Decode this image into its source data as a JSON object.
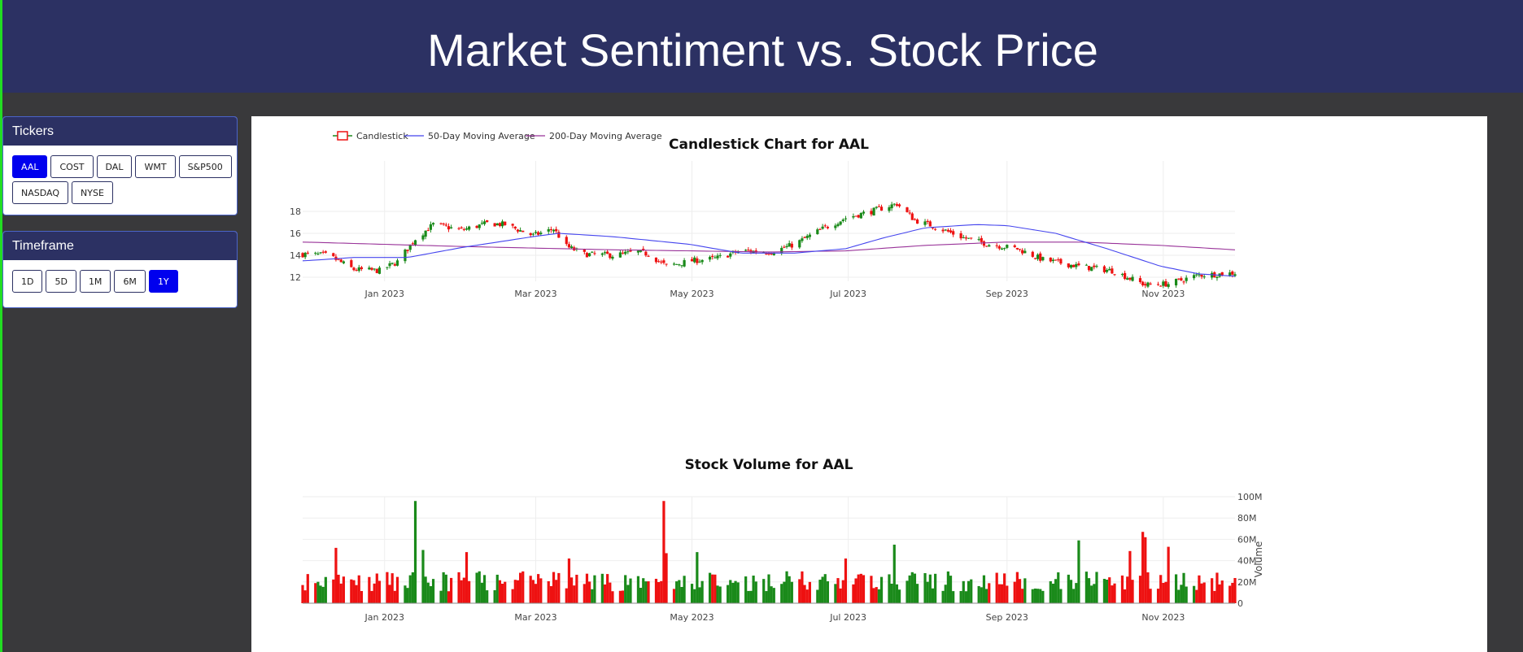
{
  "header": {
    "title": "Market Sentiment vs. Stock Price"
  },
  "tickers": {
    "title": "Tickers",
    "items": [
      "AAL",
      "COST",
      "DAL",
      "WMT",
      "S&P500",
      "NASDAQ",
      "NYSE"
    ],
    "selected": "AAL"
  },
  "timeframe": {
    "title": "Timeframe",
    "items": [
      "1D",
      "5D",
      "1M",
      "6M",
      "1Y"
    ],
    "selected": "1Y"
  },
  "colors": {
    "increasing": "#1a8a1a",
    "decreasing": "#ee1111",
    "ma50": "#4444ee",
    "ma200": "#993399",
    "header": "#2c3163",
    "accent": "#0000ee"
  },
  "chart_data": [
    {
      "type": "candlestick",
      "title": "Candlestick Chart for AAL",
      "legend": [
        "Candlestick",
        "50-Day Moving Average",
        "200-Day Moving Average"
      ],
      "legend_position": "top-left",
      "x_ticks": [
        "Jan 2023",
        "Mar 2023",
        "May 2023",
        "Jul 2023",
        "Sep 2023",
        "Nov 2023"
      ],
      "y_ticks": [
        "12",
        "14",
        "16",
        "18"
      ],
      "ylim": [
        11,
        19.5
      ],
      "grid": true,
      "price_anchors": [
        [
          "2022-12-01",
          14.1
        ],
        [
          "2022-12-10",
          14.0
        ],
        [
          "2022-12-20",
          12.7
        ],
        [
          "2022-12-30",
          12.6
        ],
        [
          "2023-01-06",
          13.4
        ],
        [
          "2023-01-13",
          15.5
        ],
        [
          "2023-01-20",
          16.8
        ],
        [
          "2023-01-31",
          16.3
        ],
        [
          "2023-02-10",
          16.9
        ],
        [
          "2023-02-17",
          16.8
        ],
        [
          "2023-02-28",
          15.8
        ],
        [
          "2023-03-08",
          16.4
        ],
        [
          "2023-03-13",
          14.8
        ],
        [
          "2023-03-20",
          14.1
        ],
        [
          "2023-03-31",
          14.0
        ],
        [
          "2023-04-10",
          14.3
        ],
        [
          "2023-04-14",
          14.1
        ],
        [
          "2023-04-21",
          13.0
        ],
        [
          "2023-05-01",
          13.5
        ],
        [
          "2023-05-10",
          13.7
        ],
        [
          "2023-05-20",
          14.4
        ],
        [
          "2023-06-01",
          14.3
        ],
        [
          "2023-06-10",
          15.0
        ],
        [
          "2023-06-20",
          16.3
        ],
        [
          "2023-06-30",
          17.4
        ],
        [
          "2023-07-10",
          18.0
        ],
        [
          "2023-07-20",
          18.7
        ],
        [
          "2023-07-27",
          17.2
        ],
        [
          "2023-08-04",
          16.6
        ],
        [
          "2023-08-15",
          15.6
        ],
        [
          "2023-08-25",
          15.0
        ],
        [
          "2023-09-05",
          14.6
        ],
        [
          "2023-09-15",
          13.6
        ],
        [
          "2023-09-29",
          13.0
        ],
        [
          "2023-10-12",
          12.6
        ],
        [
          "2023-10-25",
          11.3
        ],
        [
          "2023-11-03",
          11.4
        ],
        [
          "2023-11-15",
          12.2
        ],
        [
          "2023-11-24",
          12.3
        ],
        [
          "2023-11-29",
          12.4
        ]
      ],
      "ma50": [
        [
          "2022-12-01",
          13.5
        ],
        [
          "2022-12-20",
          13.8
        ],
        [
          "2023-01-10",
          13.8
        ],
        [
          "2023-01-31",
          14.7
        ],
        [
          "2023-02-28",
          15.7
        ],
        [
          "2023-03-10",
          16.0
        ],
        [
          "2023-03-31",
          15.7
        ],
        [
          "2023-04-30",
          15.0
        ],
        [
          "2023-05-20",
          14.2
        ],
        [
          "2023-06-10",
          14.2
        ],
        [
          "2023-06-30",
          14.6
        ],
        [
          "2023-07-15",
          15.6
        ],
        [
          "2023-07-31",
          16.5
        ],
        [
          "2023-08-20",
          16.8
        ],
        [
          "2023-09-01",
          16.7
        ],
        [
          "2023-09-20",
          16.0
        ],
        [
          "2023-10-10",
          14.6
        ],
        [
          "2023-10-31",
          13.0
        ],
        [
          "2023-11-15",
          12.3
        ],
        [
          "2023-11-29",
          12.1
        ]
      ],
      "ma200": [
        [
          "2022-12-01",
          15.2
        ],
        [
          "2023-01-31",
          14.8
        ],
        [
          "2023-03-31",
          14.5
        ],
        [
          "2023-05-31",
          14.3
        ],
        [
          "2023-06-30",
          14.4
        ],
        [
          "2023-07-31",
          14.9
        ],
        [
          "2023-08-31",
          15.2
        ],
        [
          "2023-09-30",
          15.2
        ],
        [
          "2023-10-31",
          14.9
        ],
        [
          "2023-11-29",
          14.5
        ]
      ]
    },
    {
      "type": "bar",
      "title": "Stock Volume for AAL",
      "ylabel": "Volume",
      "x_ticks": [
        "Jan 2023",
        "Mar 2023",
        "May 2023",
        "Jul 2023",
        "Sep 2023",
        "Nov 2023"
      ],
      "y_ticks": [
        "0",
        "20M",
        "40M",
        "60M",
        "80M",
        "100M"
      ],
      "ylim": [
        0,
        100000000
      ],
      "base_volume": 25000000,
      "spikes": [
        [
          "2022-12-13",
          52000000
        ],
        [
          "2023-01-13",
          96000000
        ],
        [
          "2023-01-16",
          50000000
        ],
        [
          "2023-02-02",
          48000000
        ],
        [
          "2023-04-20",
          96000000
        ],
        [
          "2023-04-21",
          47000000
        ],
        [
          "2023-05-03",
          48000000
        ],
        [
          "2023-07-19",
          55000000
        ],
        [
          "2023-09-29",
          59000000
        ],
        [
          "2023-10-24",
          67000000
        ],
        [
          "2023-10-25",
          62000000
        ],
        [
          "2023-10-19",
          49000000
        ],
        [
          "2023-11-03",
          53000000
        ],
        [
          "2023-03-14",
          42000000
        ],
        [
          "2023-06-30",
          42000000
        ]
      ]
    }
  ]
}
